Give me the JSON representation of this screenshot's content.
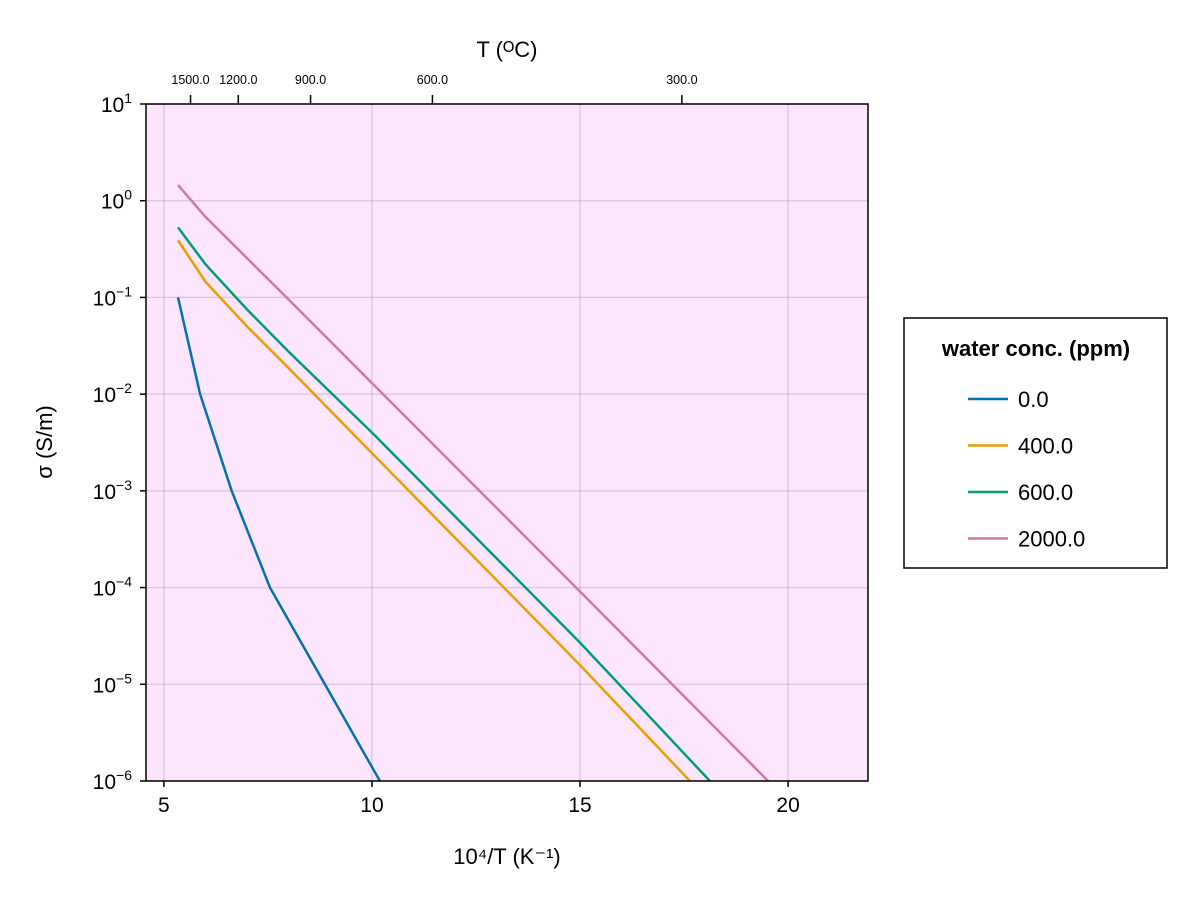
{
  "chart_data": {
    "type": "line",
    "xlabel": "10⁴/T (K⁻¹)",
    "ylabel": "σ (S/m)",
    "top_axis_label": "T (ᴼC)",
    "xlim": [
      4.57,
      21.92
    ],
    "ylim": [
      1e-06,
      10
    ],
    "yscale": "log",
    "x_ticks": [
      5,
      10,
      15,
      20
    ],
    "y_tick_exponents": [
      1,
      0,
      -1,
      -2,
      -3,
      -4,
      -5,
      -6
    ],
    "top_ticks_celsius": [
      1500.0,
      1200.0,
      900.0,
      600.0,
      300.0
    ],
    "top_tick_labels": [
      "1500.0",
      "1200.0",
      "900.0",
      "600.0",
      "300.0"
    ],
    "grid": true,
    "background": "#fde6fd",
    "legend": {
      "title": "water conc. (ppm)",
      "placement": "right"
    },
    "series": [
      {
        "name": "0.0",
        "color": "#0072b2",
        "x": [
          5.34,
          5.87,
          6.63,
          7.55,
          8.87,
          10.19
        ],
        "y": [
          0.1,
          0.01,
          0.001,
          0.0001,
          1e-05,
          1e-06
        ]
      },
      {
        "name": "400.0",
        "color": "#e69f00",
        "x": [
          5.34,
          6.0,
          7.0,
          8.0,
          10.0,
          15.0,
          17.64
        ],
        "y": [
          0.39,
          0.145,
          0.05,
          0.0186,
          0.00245,
          1.58e-05,
          1e-06
        ]
      },
      {
        "name": "600.0",
        "color": "#009e73",
        "x": [
          5.34,
          6.0,
          7.0,
          8.0,
          10.0,
          15.0,
          18.12
        ],
        "y": [
          0.53,
          0.22,
          0.075,
          0.0275,
          0.004,
          2.7e-05,
          1e-06
        ]
      },
      {
        "name": "2000.0",
        "color": "#cc79a7",
        "x": [
          5.34,
          6.0,
          8.0,
          10.0,
          15.0,
          19.52
        ],
        "y": [
          1.45,
          0.68,
          0.095,
          0.013,
          9.1e-05,
          1e-06
        ]
      }
    ]
  }
}
